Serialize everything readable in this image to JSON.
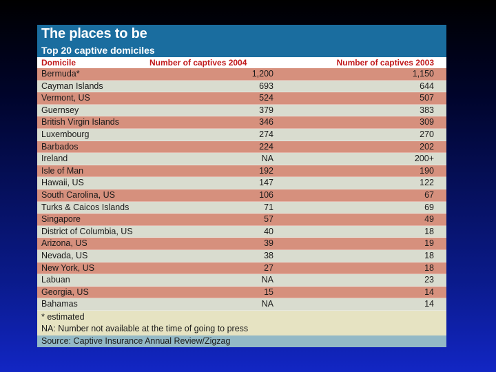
{
  "table": {
    "title": "The places to be",
    "subtitle": "Top 20 captive domiciles",
    "columns": [
      "Domicile",
      "Number of captives 2004",
      "Number of captives 2003"
    ],
    "rows": [
      {
        "domicile": "Bermuda*",
        "y2004": "1,200",
        "y2003": "1,150"
      },
      {
        "domicile": "Cayman Islands",
        "y2004": "693",
        "y2003": "644"
      },
      {
        "domicile": "Vermont, US",
        "y2004": "524",
        "y2003": "507"
      },
      {
        "domicile": "Guernsey",
        "y2004": "379",
        "y2003": "383"
      },
      {
        "domicile": "British Virgin Islands",
        "y2004": "346",
        "y2003": "309"
      },
      {
        "domicile": "Luxembourg",
        "y2004": "274",
        "y2003": "270"
      },
      {
        "domicile": "Barbados",
        "y2004": "224",
        "y2003": "202"
      },
      {
        "domicile": "Ireland",
        "y2004": "NA",
        "y2003": "200+"
      },
      {
        "domicile": "Isle of Man",
        "y2004": "192",
        "y2003": "190"
      },
      {
        "domicile": "Hawaii, US",
        "y2004": "147",
        "y2003": "122"
      },
      {
        "domicile": "South Carolina, US",
        "y2004": "106",
        "y2003": "67"
      },
      {
        "domicile": "Turks & Caicos Islands",
        "y2004": "71",
        "y2003": "69"
      },
      {
        "domicile": "Singapore",
        "y2004": "57",
        "y2003": "49"
      },
      {
        "domicile": "District of Columbia, US",
        "y2004": "40",
        "y2003": "18"
      },
      {
        "domicile": "Arizona, US",
        "y2004": "39",
        "y2003": "19"
      },
      {
        "domicile": "Nevada, US",
        "y2004": "38",
        "y2003": "18"
      },
      {
        "domicile": "New York, US",
        "y2004": "27",
        "y2003": "18"
      },
      {
        "domicile": "Labuan",
        "y2004": "NA",
        "y2003": "23"
      },
      {
        "domicile": "Georgia, US",
        "y2004": "15",
        "y2003": "14"
      },
      {
        "domicile": "Bahamas",
        "y2004": "NA",
        "y2003": "14"
      }
    ],
    "footnotes": [
      "* estimated",
      "NA: Number not available at the time of going to press"
    ],
    "source": "Source: Captive Insurance Annual Review/Zigzag"
  },
  "colors": {
    "header_bg": "#1a6d9f",
    "header_text": "#c0181a",
    "row_odd": "#d6907d",
    "row_even": "#d9dccf",
    "footnote_bg": "#e6e3c2",
    "source_bg": "#93b9c6"
  }
}
